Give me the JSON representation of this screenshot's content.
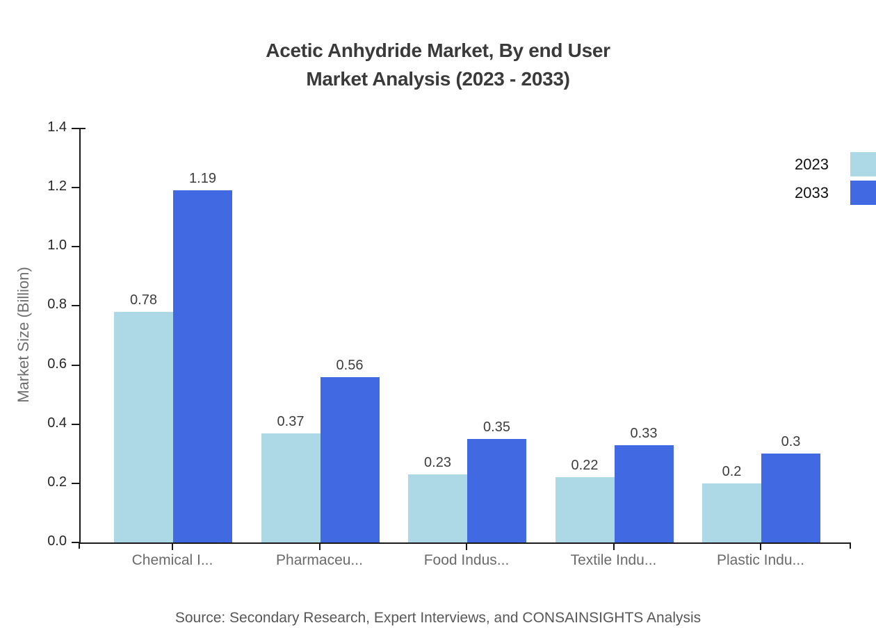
{
  "title": {
    "line1": "Acetic Anhydride Market, By end User",
    "line2": "Market Analysis (2023 - 2033)"
  },
  "source": "Source: Secondary Research, Expert Interviews, and CONSAINSIGHTS Analysis",
  "chart_data": {
    "type": "bar",
    "title": "Acetic Anhydride Market, By end User Market Analysis (2023 - 2033)",
    "ylabel": "Market Size (Billion)",
    "xlabel": "",
    "categories": [
      "Chemical I...",
      "Pharmaceu...",
      "Food Indus...",
      "Textile Indu...",
      "Plastic Indu..."
    ],
    "series": [
      {
        "name": "2023",
        "color": "#ADD8E6",
        "values": [
          0.78,
          0.37,
          0.23,
          0.22,
          0.2
        ],
        "labels": [
          "0.78",
          "0.37",
          "0.23",
          "0.22",
          "0.2"
        ]
      },
      {
        "name": "2033",
        "color": "#4169E1",
        "values": [
          1.19,
          0.56,
          0.35,
          0.33,
          0.3
        ],
        "labels": [
          "1.19",
          "0.56",
          "0.35",
          "0.33",
          "0.3"
        ]
      }
    ],
    "ylim": [
      0,
      1.4
    ],
    "yticks": [
      "0.0",
      "0.2",
      "0.4",
      "0.6",
      "0.8",
      "1.0",
      "1.2",
      "1.4"
    ],
    "grid": false,
    "legend_position": "top-right",
    "axis_color": "#1a1a1a"
  }
}
